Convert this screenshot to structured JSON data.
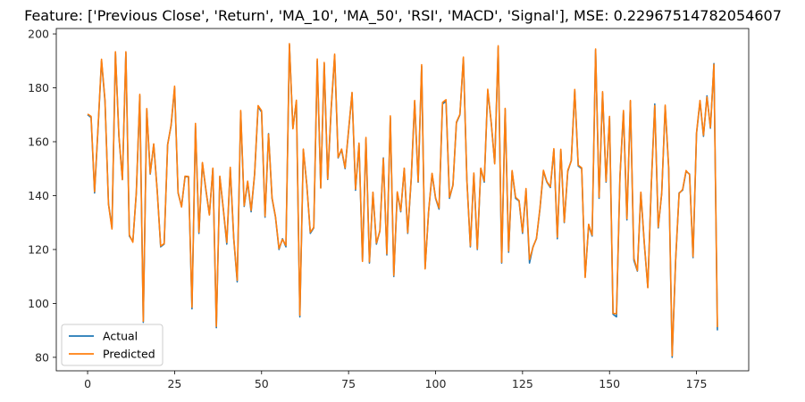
{
  "chart_data": {
    "type": "line",
    "title": "Feature: ['Previous Close', 'Return', 'MA_10', 'MA_50', 'RSI', 'MACD', 'Signal'], MSE: 0.22967514782054607",
    "xlabel": "",
    "ylabel": "",
    "xlim": [
      -9,
      190
    ],
    "ylim": [
      75,
      202
    ],
    "xticks": [
      0,
      25,
      50,
      75,
      100,
      125,
      150,
      175
    ],
    "yticks": [
      80,
      100,
      120,
      140,
      160,
      180,
      200
    ],
    "grid": false,
    "legend_position": "lower-left",
    "series": [
      {
        "name": "Actual",
        "color": "#1f77b4",
        "values": [
          170,
          169,
          141,
          165,
          190,
          175,
          137,
          128,
          193,
          162,
          146,
          193,
          125,
          123,
          141,
          177,
          93,
          172,
          148,
          159,
          142,
          121,
          122,
          159,
          166,
          180,
          141,
          136,
          147,
          147,
          98,
          166,
          126,
          152,
          142,
          133,
          150,
          91,
          147,
          135,
          122,
          150,
          124,
          108,
          171,
          136,
          145,
          134,
          148,
          173,
          171,
          132,
          163,
          139,
          132,
          120,
          124,
          121,
          196,
          165,
          175,
          95,
          157,
          144,
          126,
          128,
          190,
          143,
          189,
          146,
          172,
          192,
          154,
          157,
          150,
          164,
          178,
          142,
          159,
          116,
          161,
          115,
          141,
          122,
          127,
          154,
          118,
          169,
          110,
          141,
          134,
          150,
          126,
          146,
          175,
          145,
          188,
          113,
          134,
          148,
          139,
          135,
          174,
          175,
          139,
          144,
          167,
          170,
          191,
          146,
          121,
          148,
          120,
          150,
          145,
          179,
          167,
          152,
          195,
          115,
          172,
          119,
          149,
          139,
          138,
          126,
          142,
          115,
          121,
          124,
          135,
          149,
          145,
          143,
          157,
          124,
          157,
          130,
          149,
          153,
          179,
          151,
          150,
          110,
          129,
          125,
          194,
          139,
          178,
          145,
          169,
          96,
          95,
          147,
          171,
          131,
          175,
          116,
          112,
          141,
          122,
          106,
          144,
          174,
          128,
          141,
          173,
          150,
          80,
          116,
          141,
          142,
          149,
          148,
          117,
          163,
          175,
          162,
          177,
          165,
          189,
          90
        ]
      },
      {
        "name": "Predicted",
        "color": "#ff7f0e",
        "values": [
          170.3,
          169.4,
          141.5,
          165.3,
          190.6,
          175.4,
          136.8,
          127.6,
          193.4,
          162.2,
          145.9,
          193.4,
          125.4,
          122.7,
          141.3,
          177.6,
          93.4,
          172.3,
          148.2,
          159.2,
          141.8,
          121.3,
          122.2,
          158.7,
          166.3,
          180.6,
          141.2,
          135.8,
          147.2,
          147.1,
          98.6,
          166.8,
          126.4,
          152.3,
          142.3,
          132.8,
          150.2,
          91.5,
          147.2,
          135.2,
          122.6,
          150.5,
          124.3,
          108.6,
          171.6,
          136.3,
          145.4,
          134.5,
          148.1,
          173.4,
          171.5,
          132.4,
          162.8,
          139.3,
          132.2,
          120.4,
          123.8,
          121.5,
          196.4,
          164.8,
          175.4,
          95.6,
          157.3,
          143.8,
          126.4,
          128.2,
          190.7,
          142.8,
          189.4,
          146.2,
          172.4,
          192.5,
          154.2,
          157.3,
          150.3,
          164.2,
          178.3,
          142.4,
          159.5,
          115.6,
          161.6,
          115.4,
          141.3,
          122.4,
          126.8,
          153.8,
          118.4,
          169.6,
          110.4,
          141.4,
          134.3,
          150.2,
          126.3,
          146.4,
          175.3,
          145.2,
          188.6,
          112.8,
          134.2,
          148.3,
          139.2,
          135.4,
          174.6,
          175.6,
          139.4,
          143.8,
          167.3,
          170.2,
          191.4,
          145.8,
          121.3,
          148.4,
          120.3,
          150.2,
          145.4,
          179.5,
          167.2,
          151.8,
          195.6,
          115.3,
          172.4,
          119.4,
          149.3,
          139.4,
          138.2,
          126.4,
          142.6,
          116.3,
          120.8,
          124.2,
          135.3,
          149.4,
          145.2,
          143.3,
          157.4,
          124.6,
          157.2,
          130.2,
          149.4,
          152.8,
          179.4,
          151.3,
          150.3,
          109.6,
          129.4,
          125.3,
          194.4,
          139.4,
          178.6,
          145.3,
          169.4,
          96.3,
          96.2,
          147.2,
          171.6,
          131.4,
          175.3,
          116.8,
          112.2,
          141.3,
          122.4,
          105.8,
          143.8,
          173.4,
          128.3,
          140.8,
          173.6,
          150.4,
          80.6,
          116.3,
          140.8,
          142.3,
          149.3,
          147.8,
          117.4,
          163.3,
          175.3,
          162.4,
          176.6,
          165.3,
          188.7,
          91.2
        ]
      }
    ]
  }
}
